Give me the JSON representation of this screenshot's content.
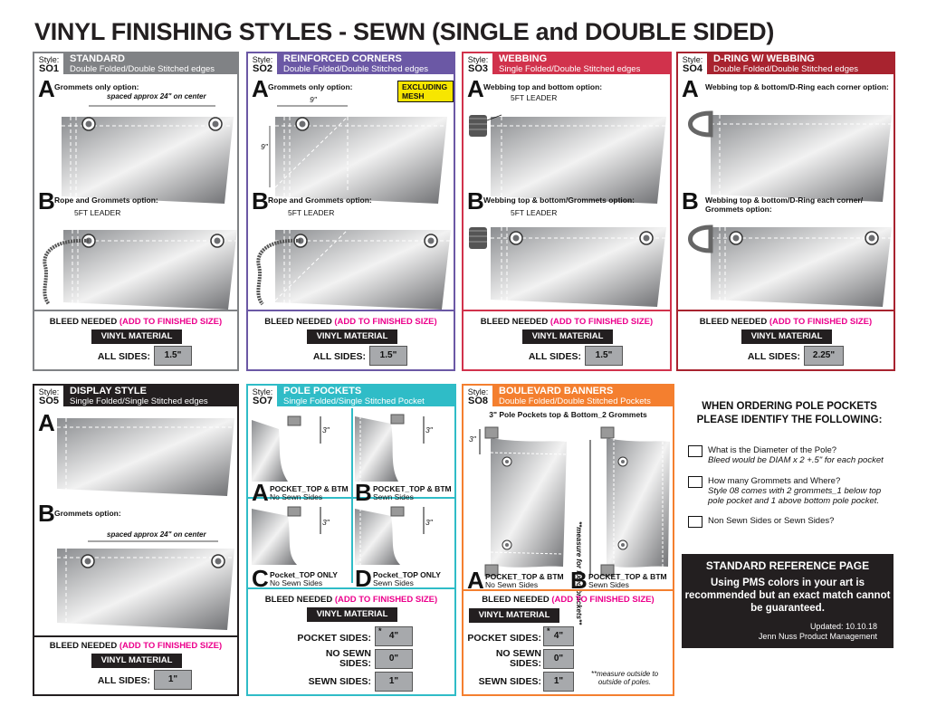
{
  "title": "VINYL FINISHING STYLES - SEWN (SINGLE and DOUBLE SIDED)",
  "colors": {
    "so1": "#808285",
    "so2": "#6b58a5",
    "so3": "#d1324c",
    "so4": "#a8232f",
    "so5": "#231f20",
    "so7": "#2fbcc7",
    "so8": "#f47f2f",
    "pink": "#ec008c"
  },
  "style_word": "Style:",
  "bleed": {
    "main": "BLEED NEEDED",
    "paren": "(ADD TO FINISHED SIZE)"
  },
  "vinyl_material": "VINYL MATERIAL",
  "all_sides": "ALL SIDES:",
  "pocket_sides": "POCKET SIDES:",
  "no_sewn_sides": "NO SEWN SIDES:",
  "sewn_sides": "SEWN SIDES:",
  "fivefoot": "5FT LEADER",
  "spaced": "spaced approx 24\" on center",
  "so1": {
    "code": "SO1",
    "name": "STANDARD",
    "sub": "Double Folded/Double Stitched edges",
    "a": "Grommets only option:",
    "b": "Rope and Grommets option:",
    "value": "1.5\""
  },
  "so2": {
    "code": "SO2",
    "name": "REINFORCED CORNERS",
    "sub": "Double Folded/Double Stitched edges",
    "a": "Grommets only option:",
    "b": "Rope and Grommets option:",
    "mesh": "EXCLUDING MESH",
    "dim": "9\"",
    "value": "1.5\""
  },
  "so3": {
    "code": "SO3",
    "name": "WEBBING",
    "sub": "Single Folded/Double Stitched edges",
    "a": "Webbing top and bottom option:",
    "b": "Webbing top & bottom/Grommets option:",
    "value": "1.5\""
  },
  "so4": {
    "code": "SO4",
    "name": "D-RING w/ WEBBING",
    "sub": "Double Folded/Double Stitched edges",
    "a": "Webbing top & bottom/D-Ring each corner option:",
    "b": "Webbing top & bottom/D-Ring each corner/ Grommets option:",
    "value": "2.25\""
  },
  "so5": {
    "code": "SO5",
    "name": "DISPLAY STYLE",
    "sub": "Single Folded/Single Stitched edges",
    "b": "Grommets option:",
    "value": "1\""
  },
  "so7": {
    "code": "SO7",
    "name": "POLE POCKETS",
    "sub": "Single Folded/Single Stitched Pocket",
    "a1": "POCKET_TOP & BTM",
    "a2": "No Sewn Sides",
    "b1": "POCKET_TOP & BTM",
    "b2": "Sewn Sides",
    "c1": "Pocket_TOP ONLY",
    "c2": "No Sewn Sides",
    "d1": "Pocket_TOP ONLY",
    "d2": "Sewn Sides",
    "dim": "3\"",
    "pocket": "4\"",
    "nosewn": "0\"",
    "sewn": "1\"",
    "star": "*"
  },
  "so8": {
    "code": "SO8",
    "name": "BOULEVARD BANNERS",
    "sub": "Double Folded/Double Stitched Pockets",
    "top": "3\" Pole Pockets top & Bottom_2 Grommets",
    "vert": "**measure for fixed brackets**",
    "a1": "POCKET_TOP & BTM",
    "a2": "No Sewn Sides",
    "b1": "POCKET_TOP & BTM",
    "b2": "Sewn Sides",
    "dim": "3\"",
    "pocket": "4\"",
    "nosewn": "0\"",
    "sewn": "1\"",
    "note": "**measure outside to outside of poles.",
    "star": "*"
  },
  "ordering": {
    "head1": "WHEN ORDERING POLE POCKETS",
    "head2": "PLEASE IDENTIFY THE FOLLOWING:",
    "q1": "What is the Diameter of the Pole?",
    "q1i": "Bleed would be DIAM x 2 +.5\" for each pocket",
    "q2": "How many Grommets and Where?",
    "q2i": "Style 08 comes with 2 grommets_1 below top pole pocket and 1 above bottom pole pocket.",
    "q3": "Non Sewn Sides or Sewn Sides?"
  },
  "reference": {
    "title": "STANDARD REFERENCE PAGE",
    "body": "Using PMS colors in your art is recommended but an exact match cannot be guaranteed.",
    "updated": "Updated: 10.10.18",
    "by": "Jenn Nuss Product Management"
  }
}
